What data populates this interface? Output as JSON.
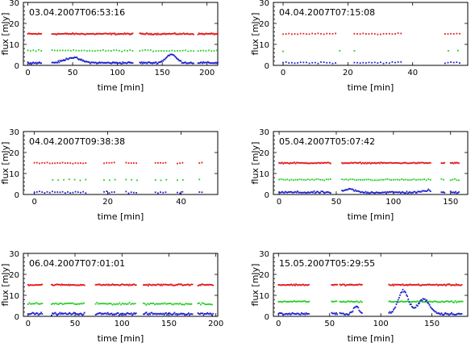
{
  "chart_data": [
    {
      "type": "scatter",
      "title": "03.04.2007T06:53:16",
      "xlabel": "time [min]",
      "ylabel": "flux [mJy]",
      "xlim": [
        -5,
        212
      ],
      "ylim": [
        0,
        30
      ],
      "xticks": [
        0,
        50,
        100,
        150,
        200
      ],
      "yticks": [
        0,
        10,
        20,
        30
      ],
      "colors": [
        "#e31a1c",
        "#22cc22",
        "#1f1fcc"
      ],
      "segments": [
        [
          0,
          15
        ],
        [
          27,
          117
        ],
        [
          125,
          185
        ],
        [
          190,
          212
        ]
      ],
      "series": [
        {
          "baseline": 15,
          "noise": 0.25,
          "dx": 1
        },
        {
          "baseline": 7,
          "noise": 0.25,
          "dx": 3
        },
        {
          "baseline": 1.2,
          "noise": 0.3,
          "dx": 1,
          "bumps": [
            [
              50,
              2.5,
              12
            ],
            [
              160,
              4.0,
              8
            ]
          ]
        }
      ]
    },
    {
      "type": "scatter",
      "title": "04.04.2007T07:15:08",
      "xlabel": "time [min]",
      "ylabel": "flux [mJy]",
      "xlim": [
        -3,
        57
      ],
      "ylim": [
        0,
        30
      ],
      "xticks": [
        0,
        20,
        40
      ],
      "yticks": [
        0,
        10,
        20,
        30
      ],
      "colors": [
        "#e31a1c",
        "#22cc22",
        "#1f1fcc"
      ],
      "segments": [
        [
          0,
          17
        ],
        [
          22,
          37
        ],
        [
          50,
          55
        ]
      ],
      "series": [
        {
          "baseline": 15,
          "noise": 0.2,
          "dx": 0.9
        },
        {
          "baseline": 7,
          "noise": 0.2,
          "dx": 3.3,
          "xs": [
            0,
            17.5,
            22,
            51,
            54
          ]
        },
        {
          "baseline": 1.3,
          "noise": 0.3,
          "dx": 0.9
        }
      ]
    },
    {
      "type": "scatter",
      "title": "04.04.2007T09:38:38",
      "xlabel": "time [min]",
      "ylabel": "flux [mJy]",
      "xlim": [
        -3,
        50
      ],
      "ylim": [
        0,
        30
      ],
      "xticks": [
        0,
        20,
        40
      ],
      "yticks": [
        0,
        10,
        20,
        30
      ],
      "colors": [
        "#e31a1c",
        "#22cc22",
        "#1f1fcc"
      ],
      "segments": [
        [
          0,
          14
        ],
        [
          19,
          22
        ],
        [
          25,
          28
        ],
        [
          33,
          36
        ],
        [
          39,
          41
        ],
        [
          45,
          46
        ]
      ],
      "series": [
        {
          "baseline": 15,
          "noise": 0.2,
          "dx": 0.7
        },
        {
          "baseline": 7,
          "noise": 0.2,
          "dx": 1.5,
          "start": 5
        },
        {
          "baseline": 1,
          "noise": 0.35,
          "dx": 0.7
        }
      ]
    },
    {
      "type": "scatter",
      "title": "05.04.2007T05:07:42",
      "xlabel": "time [min]",
      "ylabel": "flux [mJy]",
      "xlim": [
        -5,
        165
      ],
      "ylim": [
        0,
        30
      ],
      "xticks": [
        0,
        50,
        100,
        150
      ],
      "yticks": [
        0,
        10,
        20,
        30
      ],
      "colors": [
        "#e31a1c",
        "#22cc22",
        "#1f1fcc"
      ],
      "segments": [
        [
          0,
          45
        ],
        [
          55,
          133
        ],
        [
          142,
          145
        ],
        [
          150,
          158
        ]
      ],
      "series": [
        {
          "baseline": 15,
          "noise": 0.2,
          "dx": 0.9
        },
        {
          "baseline": 7,
          "noise": 0.25,
          "dx": 1.8
        },
        {
          "baseline": 1,
          "noise": 0.35,
          "dx": 0.9,
          "bumps": [
            [
              62,
              1.5,
              6
            ],
            [
              130,
              1.0,
              5
            ]
          ]
        }
      ]
    },
    {
      "type": "scatter",
      "title": "06.04.2007T07:01:01",
      "xlabel": "time [min]",
      "ylabel": "flux [mJy]",
      "xlim": [
        -5,
        202
      ],
      "ylim": [
        0,
        30
      ],
      "xticks": [
        0,
        50,
        100,
        150,
        200
      ],
      "yticks": [
        0,
        10,
        20,
        30
      ],
      "colors": [
        "#e31a1c",
        "#22cc22",
        "#1f1fcc"
      ],
      "segments": [
        [
          0,
          15
        ],
        [
          25,
          60
        ],
        [
          72,
          115
        ],
        [
          123,
          175
        ],
        [
          181,
          197
        ]
      ],
      "series": [
        {
          "baseline": 15,
          "noise": 0.25,
          "dx": 1
        },
        {
          "baseline": 6,
          "noise": 0.35,
          "dx": 1.5
        },
        {
          "baseline": 1.2,
          "noise": 0.4,
          "dx": 1
        }
      ]
    },
    {
      "type": "scatter",
      "title": "15.05.2007T05:29:55",
      "xlabel": "time [min]",
      "ylabel": "flux [mJy]",
      "xlim": [
        -5,
        185
      ],
      "ylim": [
        0,
        30
      ],
      "xticks": [
        0,
        50,
        100,
        150
      ],
      "yticks": [
        0,
        10,
        20,
        30
      ],
      "colors": [
        "#e31a1c",
        "#22cc22",
        "#1f1fcc"
      ],
      "segments": [
        [
          0,
          30
        ],
        [
          52,
          58
        ],
        [
          60,
          82
        ],
        [
          108,
          180
        ]
      ],
      "series": [
        {
          "baseline": 15,
          "noise": 0.25,
          "dx": 0.9
        },
        {
          "baseline": 7,
          "noise": 0.25,
          "dx": 1.2
        },
        {
          "baseline": 1.2,
          "noise": 0.4,
          "dx": 0.9,
          "bumps": [
            [
              76,
              3.5,
              4
            ],
            [
              122,
              11,
              7
            ],
            [
              142,
              7,
              8
            ]
          ]
        }
      ]
    }
  ]
}
